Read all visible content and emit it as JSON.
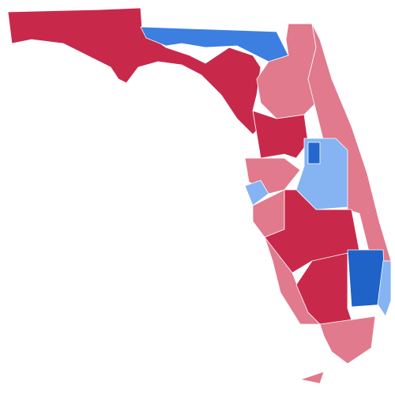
{
  "map": {
    "regions": [
      {
        "color": "#c8294a"
      },
      {
        "color": "#3d7fe0"
      },
      {
        "color": "#e07a8c"
      },
      {
        "color": "#e07a8c"
      },
      {
        "color": "#c8294a"
      },
      {
        "color": "#86b4f2"
      },
      {
        "color": "#2566cf"
      },
      {
        "color": "#e07a8c"
      },
      {
        "color": "#86b4f2"
      },
      {
        "color": "#e07a8c"
      },
      {
        "color": "#c8294a"
      },
      {
        "color": "#e07a8c"
      },
      {
        "color": "#c8294a"
      },
      {
        "color": "#1f62c8"
      },
      {
        "color": "#86b4f2"
      },
      {
        "color": "#e07a8c"
      },
      {
        "color": "#e07a8c"
      }
    ]
  }
}
